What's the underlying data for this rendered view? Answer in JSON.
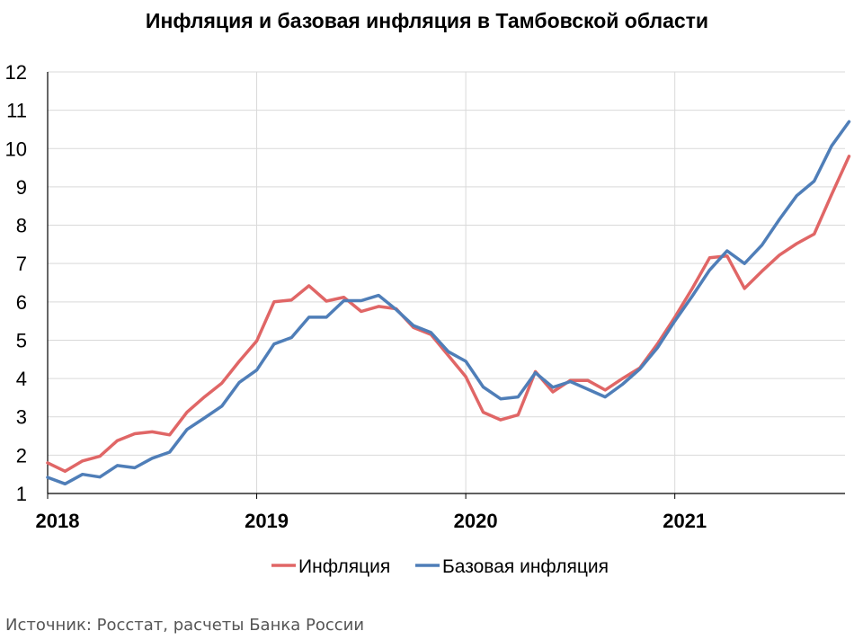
{
  "chart_data": {
    "type": "line",
    "title": "Инфляция и базовая инфляция в Тамбовской области",
    "xlabel": "",
    "ylabel": "",
    "ylim": [
      1,
      12
    ],
    "yticks": [
      "1",
      "2",
      "3",
      "4",
      "5",
      "6",
      "7",
      "8",
      "9",
      "10",
      "11",
      "12"
    ],
    "xticks": [
      "2018",
      "2019",
      "2020",
      "2021"
    ],
    "x_start": "2018-01",
    "x_end": "2021-10",
    "grid": true,
    "legend_position": "bottom",
    "series": [
      {
        "name": "Инфляция",
        "color": "#e06666",
        "values": [
          1.8,
          1.58,
          1.85,
          1.97,
          2.38,
          2.56,
          2.61,
          2.53,
          3.12,
          3.52,
          3.88,
          4.45,
          4.98,
          6.0,
          6.05,
          6.42,
          6.02,
          6.12,
          5.75,
          5.88,
          5.82,
          5.33,
          5.15,
          4.6,
          4.05,
          3.12,
          2.92,
          3.05,
          4.18,
          3.65,
          3.95,
          3.95,
          3.7,
          4.0,
          4.28,
          4.9,
          5.6,
          6.35,
          7.15,
          7.2,
          6.35,
          6.8,
          7.22,
          7.52,
          7.77,
          8.8,
          9.8
        ]
      },
      {
        "name": "Базовая инфляция",
        "color": "#4f7eb8",
        "values": [
          1.42,
          1.25,
          1.5,
          1.43,
          1.73,
          1.67,
          1.92,
          2.08,
          2.67,
          2.97,
          3.28,
          3.9,
          4.22,
          4.9,
          5.07,
          5.6,
          5.6,
          6.03,
          6.03,
          6.17,
          5.8,
          5.38,
          5.2,
          4.7,
          4.45,
          3.78,
          3.47,
          3.52,
          4.15,
          3.77,
          3.92,
          3.72,
          3.52,
          3.85,
          4.25,
          4.8,
          5.5,
          6.15,
          6.83,
          7.33,
          7.0,
          7.48,
          8.15,
          8.77,
          9.15,
          10.07,
          10.7
        ]
      }
    ]
  },
  "source": "Источник: Росстат, расчеты Банка России"
}
